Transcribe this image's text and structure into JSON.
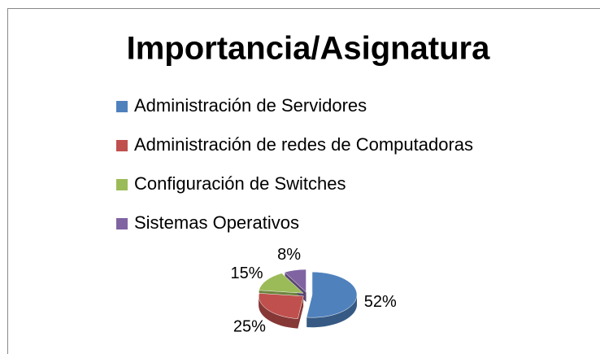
{
  "chart_data": {
    "type": "pie",
    "title": "Importancia/Asignatura",
    "categories": [
      "Administración de Servidores",
      "Administración de redes de Computadoras",
      "Configuración de Switches",
      "Sistemas Operativos"
    ],
    "values": [
      52,
      25,
      15,
      8
    ],
    "value_labels": [
      "52%",
      "25%",
      "15%",
      "8%"
    ],
    "colors": [
      "#4f81bd",
      "#c0504d",
      "#9bbb59",
      "#8064a2"
    ],
    "legend": "top"
  }
}
